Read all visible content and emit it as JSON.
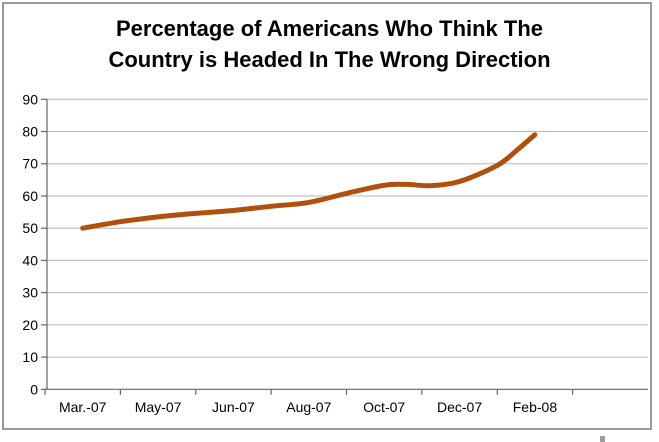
{
  "frame": {
    "border_color": "#97999c",
    "background": "#ffffff"
  },
  "chart_data": {
    "type": "line",
    "title": "Percentage of Americans Who Think The Country is Headed In The Wrong Direction",
    "title_lines": [
      "Percentage of Americans Who Think The",
      "Country is Headed In The Wrong Direction"
    ],
    "categories": [
      "Mar.-07",
      "May-07",
      "Jun-07",
      "Aug-07",
      "Oct-07",
      "Dec-07",
      "Feb-08"
    ],
    "values": [
      50,
      53.5,
      55,
      58,
      63.5,
      64.5,
      79
    ],
    "curve_points": [
      [
        0,
        50
      ],
      [
        0.5,
        52
      ],
      [
        1,
        53.5
      ],
      [
        1.5,
        54.6
      ],
      [
        2,
        55.5
      ],
      [
        2.5,
        56.8
      ],
      [
        3,
        58
      ],
      [
        3.5,
        60.8
      ],
      [
        4,
        63.3
      ],
      [
        4.3,
        63.6
      ],
      [
        4.6,
        63.2
      ],
      [
        5,
        64.5
      ],
      [
        5.5,
        69.5
      ],
      [
        5.75,
        74
      ],
      [
        6,
        79
      ]
    ],
    "xlabel": "",
    "ylabel": "",
    "y_ticks": [
      0,
      10,
      20,
      30,
      40,
      50,
      60,
      70,
      80,
      90
    ],
    "ylim": [
      0,
      90
    ],
    "grid": "horizontal",
    "legend": "none",
    "line_color": "#B0500E",
    "line_width": 5,
    "grid_color": "#b6b6b6",
    "axis_color": "#666666",
    "label_color": "#000000"
  }
}
